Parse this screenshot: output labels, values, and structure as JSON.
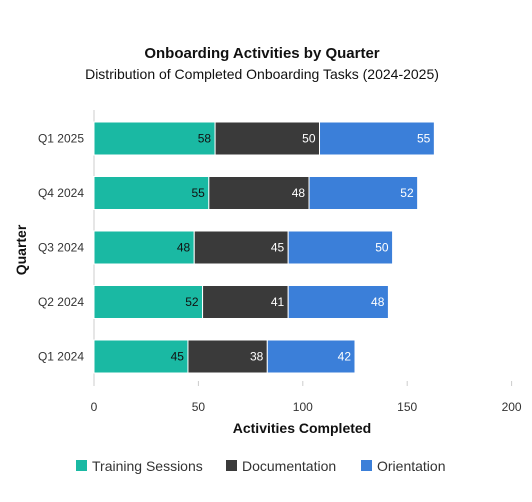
{
  "chart_data": {
    "type": "bar",
    "orientation": "horizontal",
    "stacked": true,
    "title": "Onboarding Activities by Quarter",
    "subtitle": "Distribution of Completed Onboarding Tasks (2024-2025)",
    "xlabel": "Activities Completed",
    "ylabel": "Quarter",
    "xlim": [
      0,
      200
    ],
    "xticks": [
      "0",
      "50",
      "100",
      "150",
      "200"
    ],
    "categories": [
      "Q1 2025",
      "Q4 2024",
      "Q3 2024",
      "Q2 2024",
      "Q1 2024"
    ],
    "series": [
      {
        "name": "Training Sessions",
        "color": "#1ab9a3",
        "label_color": "#111111",
        "values": [
          58,
          55,
          48,
          52,
          45
        ]
      },
      {
        "name": "Documentation",
        "color": "#3a3a3a",
        "label_color": "#ffffff",
        "values": [
          50,
          48,
          45,
          41,
          38
        ]
      },
      {
        "name": "Orientation",
        "color": "#3b7fd9",
        "label_color": "#ffffff",
        "values": [
          55,
          52,
          50,
          48,
          42
        ]
      }
    ],
    "grid": "none",
    "legend_position": "bottom"
  }
}
